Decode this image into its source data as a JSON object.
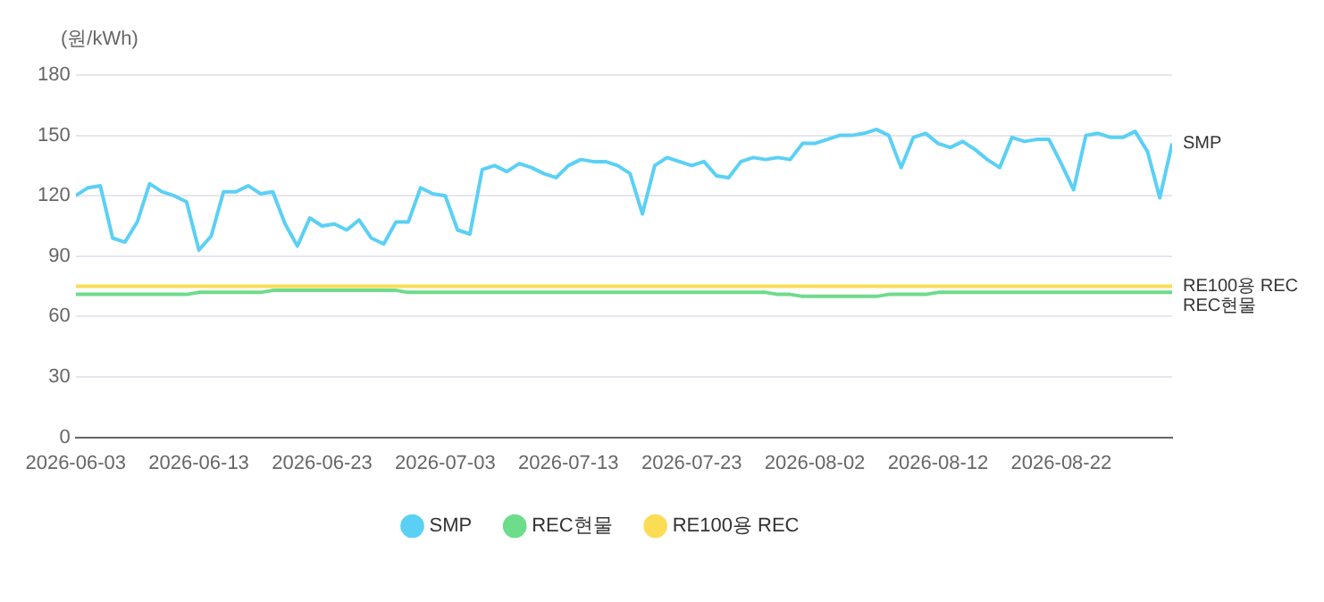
{
  "chart_data": {
    "type": "line",
    "ylabel": "(원/kWh)",
    "x": [
      "2026-06-03",
      "2026-06-04",
      "2026-06-05",
      "2026-06-06",
      "2026-06-07",
      "2026-06-08",
      "2026-06-09",
      "2026-06-10",
      "2026-06-11",
      "2026-06-12",
      "2026-06-13",
      "2026-06-14",
      "2026-06-15",
      "2026-06-16",
      "2026-06-17",
      "2026-06-18",
      "2026-06-19",
      "2026-06-20",
      "2026-06-21",
      "2026-06-22",
      "2026-06-23",
      "2026-06-24",
      "2026-06-25",
      "2026-06-26",
      "2026-06-27",
      "2026-06-28",
      "2026-06-29",
      "2026-06-30",
      "2026-07-01",
      "2026-07-02",
      "2026-07-03",
      "2026-07-04",
      "2026-07-05",
      "2026-07-06",
      "2026-07-07",
      "2026-07-08",
      "2026-07-09",
      "2026-07-10",
      "2026-07-11",
      "2026-07-12",
      "2026-07-13",
      "2026-07-14",
      "2026-07-15",
      "2026-07-16",
      "2026-07-17",
      "2026-07-18",
      "2026-07-19",
      "2026-07-20",
      "2026-07-21",
      "2026-07-22",
      "2026-07-23",
      "2026-07-24",
      "2026-07-25",
      "2026-07-26",
      "2026-07-27",
      "2026-07-28",
      "2026-07-29",
      "2026-07-30",
      "2026-07-31",
      "2026-08-01",
      "2026-08-02",
      "2026-08-03",
      "2026-08-04",
      "2026-08-05",
      "2026-08-06",
      "2026-08-07",
      "2026-08-08",
      "2026-08-09",
      "2026-08-10",
      "2026-08-11",
      "2026-08-12",
      "2026-08-13",
      "2026-08-14",
      "2026-08-15",
      "2026-08-16",
      "2026-08-17",
      "2026-08-18",
      "2026-08-19",
      "2026-08-20",
      "2026-08-21",
      "2026-08-22",
      "2026-08-23",
      "2026-08-24",
      "2026-08-25",
      "2026-08-26",
      "2026-08-27",
      "2026-08-28",
      "2026-08-29",
      "2026-08-30",
      "2026-08-31"
    ],
    "series": [
      {
        "name": "SMP",
        "color": "#5bd0f5",
        "values": [
          120,
          124,
          125,
          99,
          97,
          107,
          126,
          122,
          120,
          117,
          93,
          100,
          122,
          122,
          125,
          121,
          122,
          106,
          95,
          109,
          105,
          106,
          103,
          108,
          99,
          96,
          107,
          107,
          124,
          121,
          120,
          103,
          101,
          133,
          135,
          132,
          136,
          134,
          131,
          129,
          135,
          138,
          137,
          137,
          135,
          131,
          111,
          135,
          139,
          137,
          135,
          137,
          130,
          129,
          137,
          139,
          138,
          139,
          138,
          146,
          146,
          148,
          150,
          150,
          151,
          153,
          150,
          134,
          149,
          151,
          146,
          144,
          147,
          143,
          138,
          134,
          149,
          147,
          148,
          148,
          136,
          123,
          150,
          151,
          149,
          149,
          152,
          142,
          119,
          146
        ]
      },
      {
        "name": "REC현물",
        "color": "#6ddc8b",
        "values": [
          71,
          71,
          71,
          71,
          71,
          71,
          71,
          71,
          71,
          71,
          72,
          72,
          72,
          72,
          72,
          72,
          73,
          73,
          73,
          73,
          73,
          73,
          73,
          73,
          73,
          73,
          73,
          72,
          72,
          72,
          72,
          72,
          72,
          72,
          72,
          72,
          72,
          72,
          72,
          72,
          72,
          72,
          72,
          72,
          72,
          72,
          72,
          72,
          72,
          72,
          72,
          72,
          72,
          72,
          72,
          72,
          72,
          71,
          71,
          70,
          70,
          70,
          70,
          70,
          70,
          70,
          71,
          71,
          71,
          71,
          72,
          72,
          72,
          72,
          72,
          72,
          72,
          72,
          72,
          72,
          72,
          72,
          72,
          72,
          72,
          72,
          72,
          72,
          72,
          72
        ]
      },
      {
        "name": "RE100용 REC",
        "color": "#fbdc55",
        "values": [
          75,
          75,
          75,
          75,
          75,
          75,
          75,
          75,
          75,
          75,
          75,
          75,
          75,
          75,
          75,
          75,
          75,
          75,
          75,
          75,
          75,
          75,
          75,
          75,
          75,
          75,
          75,
          75,
          75,
          75,
          75,
          75,
          75,
          75,
          75,
          75,
          75,
          75,
          75,
          75,
          75,
          75,
          75,
          75,
          75,
          75,
          75,
          75,
          75,
          75,
          75,
          75,
          75,
          75,
          75,
          75,
          75,
          75,
          75,
          75,
          75,
          75,
          75,
          75,
          75,
          75,
          75,
          75,
          75,
          75,
          75,
          75,
          75,
          75,
          75,
          75,
          75,
          75,
          75,
          75,
          75,
          75,
          75,
          75,
          75,
          75,
          75,
          75,
          75,
          75
        ]
      }
    ],
    "xlim": [
      "2026-06-03",
      "2026-08-31"
    ],
    "xticks": [
      "2026-06-03",
      "2026-06-13",
      "2026-06-23",
      "2026-07-03",
      "2026-07-13",
      "2026-07-23",
      "2026-08-02",
      "2026-08-12",
      "2026-08-22"
    ],
    "ylim": [
      0,
      180
    ],
    "yticks": [
      0,
      30,
      60,
      90,
      120,
      150,
      180
    ],
    "grid": "y",
    "legend": "bottom",
    "marker": "none",
    "line_style": "solid"
  }
}
